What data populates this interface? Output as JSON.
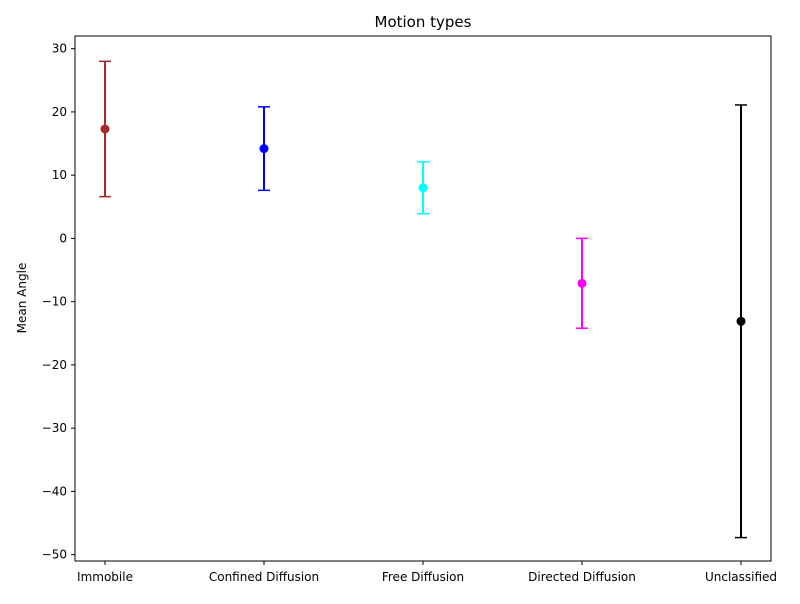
{
  "chart_data": {
    "type": "scatter",
    "variant": "errorbar",
    "title": "Motion types",
    "xlabel": "",
    "ylabel": "Mean Angle",
    "categories": [
      "Immobile",
      "Confined Diffusion",
      "Free Diffusion",
      "Directed Diffusion",
      "Unclassified"
    ],
    "means": [
      17.3,
      14.2,
      8.0,
      -7.1,
      -13.1
    ],
    "errors": [
      10.7,
      6.6,
      4.1,
      7.1,
      34.2
    ],
    "colors": [
      "#a52a2a",
      "#0000ff",
      "#00ffff",
      "#ff00ff",
      "#000000"
    ],
    "ylim": [
      -51,
      32
    ],
    "yticks": [
      -50,
      -40,
      -30,
      -20,
      -10,
      0,
      10,
      20,
      30
    ],
    "ytick_labels": [
      "−50",
      "−40",
      "−30",
      "−20",
      "−10",
      "0",
      "10",
      "20",
      "30"
    ],
    "grid": false,
    "legend": "none"
  }
}
